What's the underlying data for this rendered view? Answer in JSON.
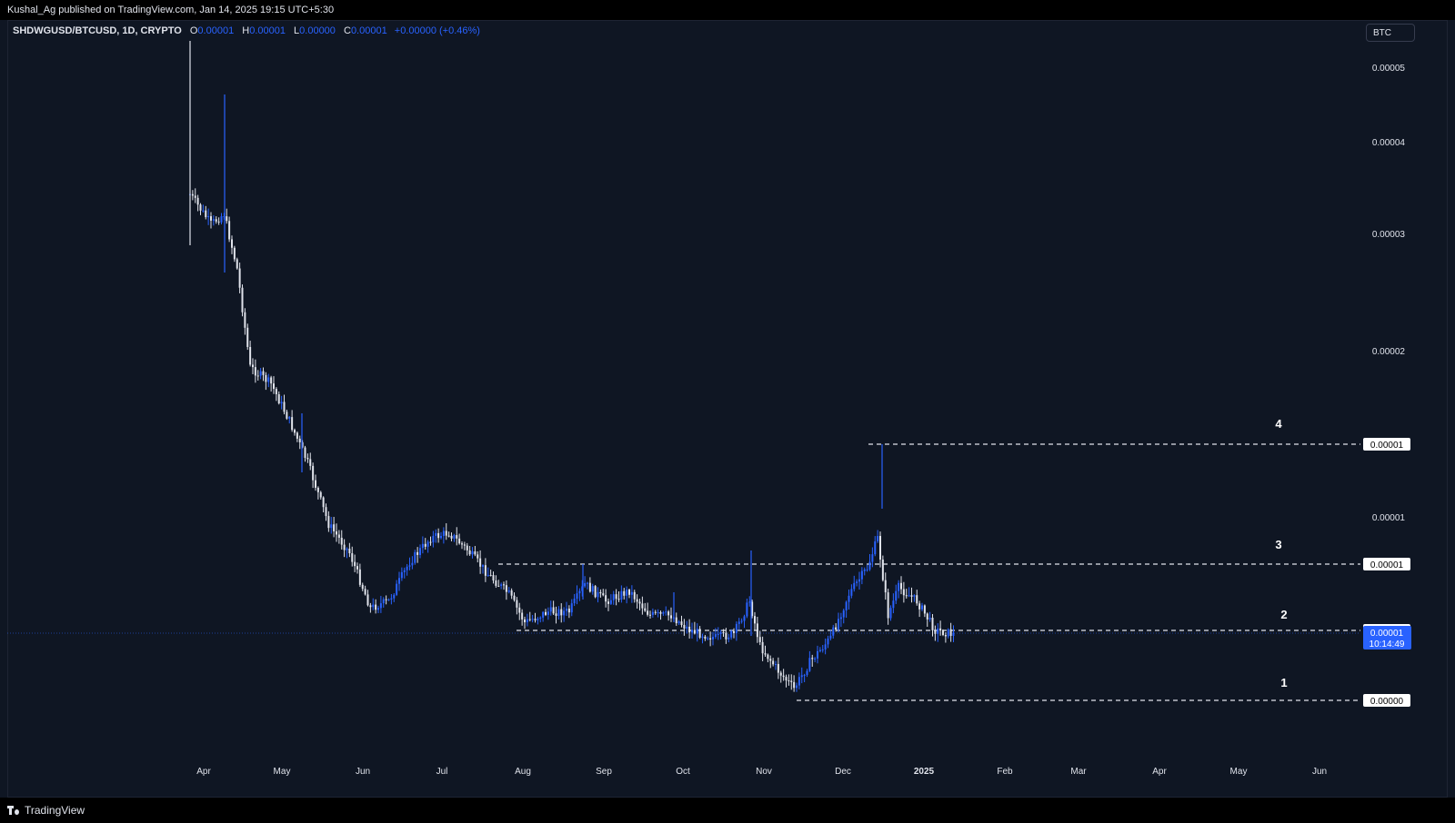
{
  "header": {
    "published": "Kushal_Ag published on TradingView.com, Jan 14, 2025 19:15 UTC+5:30"
  },
  "legend": {
    "symbol": "SHDWGUSD/BTCUSD, 1D, CRYPTO",
    "o_label": "O",
    "o_value": "0.00001",
    "h_label": "H",
    "h_value": "0.00001",
    "l_label": "L",
    "l_value": "0.00000",
    "c_label": "C",
    "c_value": "0.00001",
    "change": "+0.00000 (+0.46%)"
  },
  "currency_button": "BTC",
  "footer": {
    "brand": "TradingView"
  },
  "colors": {
    "background": "#0f1623",
    "up": "#2962ff",
    "down": "#e0e3eb",
    "last_price": "#2962ff"
  },
  "chart_data": {
    "type": "candlestick",
    "title": "SHDWGUSD/BTCUSD, 1D, CRYPTO",
    "y_axis": {
      "position": "right",
      "labels": [
        "0.00005",
        "0.00004",
        "0.00003",
        "0.00002",
        "0.00001"
      ]
    },
    "x_axis": {
      "labels": [
        "Apr",
        "May",
        "Jun",
        "Jul",
        "Aug",
        "Sep",
        "Oct",
        "Nov",
        "Dec",
        "2025",
        "Feb",
        "Mar",
        "Apr",
        "May",
        "Jun"
      ]
    },
    "last_price": {
      "value": "0.00001",
      "countdown": "10:14:49"
    },
    "horizontal_levels": [
      {
        "name": "4",
        "axis_label": "0.00001"
      },
      {
        "name": "3",
        "axis_label": "0.00001"
      },
      {
        "name": "2",
        "axis_label": "0.00001"
      },
      {
        "name": "1",
        "axis_label": "0.00000"
      }
    ],
    "close_path_price_btc": [
      [
        "2024-03-28",
        3.3e-05
      ],
      [
        "2024-04-05",
        3e-05
      ],
      [
        "2024-04-10",
        3.1e-05
      ],
      [
        "2024-04-15",
        2.6e-05
      ],
      [
        "2024-04-20",
        1.9e-05
      ],
      [
        "2024-04-28",
        1.8e-05
      ],
      [
        "2024-05-05",
        1.6e-05
      ],
      [
        "2024-05-12",
        1.4e-05
      ],
      [
        "2024-05-20",
        1.15e-05
      ],
      [
        "2024-05-28",
        1.05e-05
      ],
      [
        "2024-06-05",
        8.8e-06
      ],
      [
        "2024-06-12",
        9e-06
      ],
      [
        "2024-06-20",
        1.02e-05
      ],
      [
        "2024-06-28",
        1.1e-05
      ],
      [
        "2024-07-05",
        1.12e-05
      ],
      [
        "2024-07-12",
        1.06e-05
      ],
      [
        "2024-07-20",
        9.8e-06
      ],
      [
        "2024-07-28",
        9.2e-06
      ],
      [
        "2024-08-03",
        8.4e-06
      ],
      [
        "2024-08-12",
        8.7e-06
      ],
      [
        "2024-08-20",
        8.7e-06
      ],
      [
        "2024-08-26",
        9.5e-06
      ],
      [
        "2024-09-03",
        9e-06
      ],
      [
        "2024-09-12",
        9.3e-06
      ],
      [
        "2024-09-20",
        8.6e-06
      ],
      [
        "2024-09-28",
        8.6e-06
      ],
      [
        "2024-10-05",
        8.2e-06
      ],
      [
        "2024-10-15",
        8e-06
      ],
      [
        "2024-10-22",
        8.1e-06
      ],
      [
        "2024-10-28",
        9e-06
      ],
      [
        "2024-11-01",
        7.8e-06
      ],
      [
        "2024-11-08",
        7.2e-06
      ],
      [
        "2024-11-14",
        6.8e-06
      ],
      [
        "2024-11-20",
        7.4e-06
      ],
      [
        "2024-11-28",
        8e-06
      ],
      [
        "2024-12-05",
        9.2e-06
      ],
      [
        "2024-12-12",
        1e-05
      ],
      [
        "2024-12-16",
        1.1e-05
      ],
      [
        "2024-12-20",
        8.6e-06
      ],
      [
        "2024-12-24",
        9.4e-06
      ],
      [
        "2024-12-31",
        9e-06
      ],
      [
        "2025-01-07",
        8.2e-06
      ],
      [
        "2025-01-14",
        8.1e-06
      ]
    ]
  }
}
